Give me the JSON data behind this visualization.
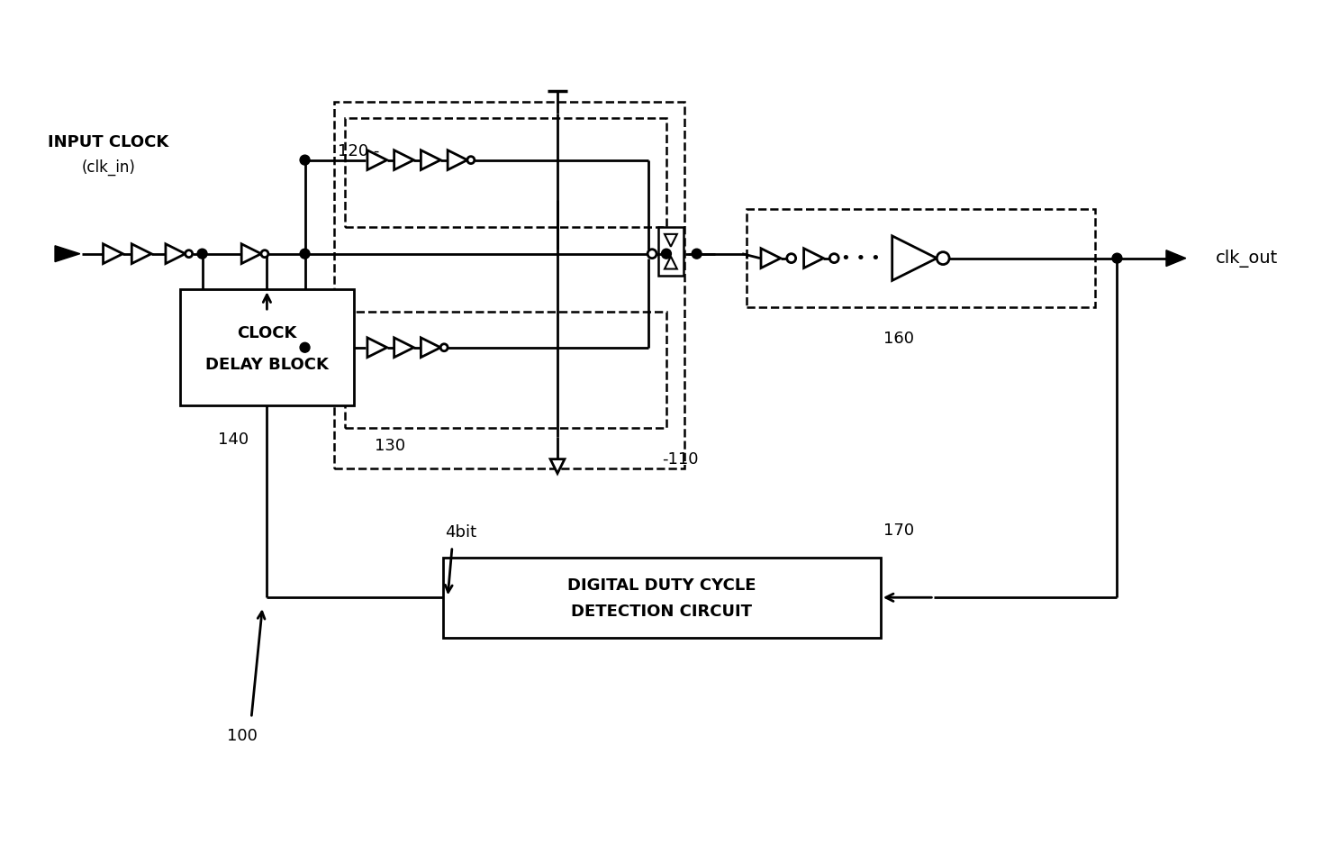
{
  "bg_color": "#ffffff",
  "line_color": "#000000",
  "labels": {
    "input_clock_line1": "INPUT CLOCK",
    "input_clock_line2": "(clk_in)",
    "clk_out": "clk_out",
    "clock_delay_block_line1": "CLOCK",
    "clock_delay_block_line2": "DELAY BLOCK",
    "digital_duty_line1": "DIGITAL DUTY CYCLE",
    "digital_duty_line2": "DETECTION CIRCUIT",
    "label_100": "100",
    "label_110": "-110",
    "label_120": "120 -",
    "label_130": "130",
    "label_140": "140",
    "label_160": "160",
    "label_170": "170",
    "label_4bit": "4bit"
  }
}
